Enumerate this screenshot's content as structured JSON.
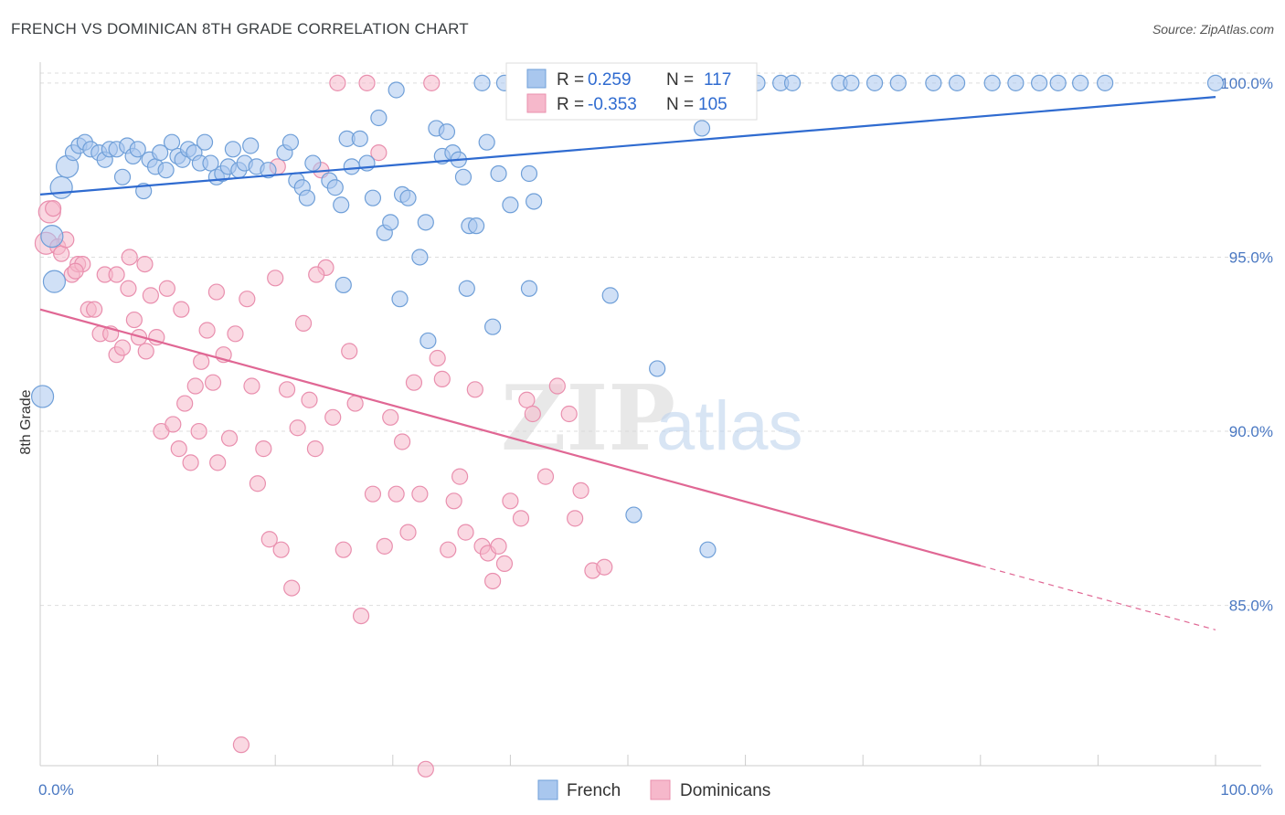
{
  "title": "FRENCH VS DOMINICAN 8TH GRADE CORRELATION CHART",
  "source": "Source: ZipAtlas.com",
  "watermark": {
    "zip": "ZIP",
    "atlas": "atlas"
  },
  "colors": {
    "french_fill": "#a9c7ee",
    "french_stroke": "#6f9fd8",
    "french_line": "#2f6bd0",
    "dominican_fill": "#f6b8cb",
    "dominican_stroke": "#e98fae",
    "dominican_line": "#e06794",
    "tick_text": "#4a78c2",
    "grid": "#dddddd"
  },
  "legend": {
    "french": {
      "r_label": "R =",
      "r_value": " 0.259",
      "n_label": "N =",
      "n_value": "117"
    },
    "dominican": {
      "r_label": "R =",
      "r_value": "-0.353",
      "n_label": "N =",
      "n_value": "105"
    }
  },
  "bottom_legend": [
    "French",
    "Dominicans"
  ],
  "chart_data": {
    "type": "scatter",
    "title": "FRENCH VS DOMINICAN 8TH GRADE CORRELATION CHART",
    "xlabel": "",
    "ylabel": "8th Grade",
    "xlim": [
      0,
      100
    ],
    "ylim": [
      80.4,
      100.6
    ],
    "x_tick_labels": [
      "0.0%",
      "100.0%"
    ],
    "y_ticks": [
      85,
      90,
      95,
      100
    ],
    "y_tick_labels": [
      "85.0%",
      "90.0%",
      "95.0%",
      "100.0%"
    ],
    "grid": "horizontal dashed",
    "legend_position": "top-center",
    "series": [
      {
        "name": "French",
        "r": 0.259,
        "n": 117,
        "trend": {
          "x": [
            0,
            100
          ],
          "y": [
            96.8,
            99.6
          ],
          "dashed_from": null
        },
        "points": [
          [
            1.0,
            95.6
          ],
          [
            1.2,
            94.3
          ],
          [
            1.8,
            97.0
          ],
          [
            2.3,
            97.6
          ],
          [
            2.8,
            98.0
          ],
          [
            3.3,
            98.2
          ],
          [
            3.8,
            98.3
          ],
          [
            4.3,
            98.1
          ],
          [
            5.0,
            98.0
          ],
          [
            5.5,
            97.8
          ],
          [
            5.9,
            98.1
          ],
          [
            6.5,
            98.1
          ],
          [
            7.0,
            97.3
          ],
          [
            7.4,
            98.2
          ],
          [
            7.9,
            97.9
          ],
          [
            8.3,
            98.1
          ],
          [
            8.8,
            96.9
          ],
          [
            9.3,
            97.8
          ],
          [
            9.8,
            97.6
          ],
          [
            10.2,
            98.0
          ],
          [
            10.7,
            97.5
          ],
          [
            11.2,
            98.3
          ],
          [
            11.7,
            97.9
          ],
          [
            12.1,
            97.8
          ],
          [
            12.6,
            98.1
          ],
          [
            13.1,
            98.0
          ],
          [
            13.6,
            97.7
          ],
          [
            14.0,
            98.3
          ],
          [
            14.5,
            97.7
          ],
          [
            15.0,
            97.3
          ],
          [
            15.5,
            97.4
          ],
          [
            16.0,
            97.6
          ],
          [
            16.4,
            98.1
          ],
          [
            16.9,
            97.5
          ],
          [
            17.4,
            97.7
          ],
          [
            17.9,
            98.2
          ],
          [
            18.4,
            97.6
          ],
          [
            19.4,
            97.5
          ],
          [
            20.8,
            98.0
          ],
          [
            21.3,
            98.3
          ],
          [
            21.8,
            97.2
          ],
          [
            22.3,
            97.0
          ],
          [
            22.7,
            96.7
          ],
          [
            23.2,
            97.7
          ],
          [
            24.6,
            97.2
          ],
          [
            25.1,
            97.0
          ],
          [
            25.6,
            96.5
          ],
          [
            26.1,
            98.4
          ],
          [
            26.5,
            97.6
          ],
          [
            27.2,
            98.4
          ],
          [
            27.8,
            97.7
          ],
          [
            28.3,
            96.7
          ],
          [
            28.8,
            99.0
          ],
          [
            29.3,
            95.7
          ],
          [
            29.8,
            96.0
          ],
          [
            30.3,
            99.8
          ],
          [
            30.8,
            96.8
          ],
          [
            31.3,
            96.7
          ],
          [
            32.3,
            95.0
          ],
          [
            32.8,
            96.0
          ],
          [
            33.7,
            98.7
          ],
          [
            34.2,
            97.9
          ],
          [
            34.6,
            98.6
          ],
          [
            35.1,
            98.0
          ],
          [
            35.6,
            97.8
          ],
          [
            36.0,
            97.3
          ],
          [
            36.5,
            95.9
          ],
          [
            37.1,
            95.9
          ],
          [
            37.6,
            100.0
          ],
          [
            38.0,
            98.3
          ],
          [
            38.5,
            93.0
          ],
          [
            39.0,
            97.4
          ],
          [
            39.5,
            100.0
          ],
          [
            40.0,
            96.5
          ],
          [
            40.9,
            100.0
          ],
          [
            41.6,
            97.4
          ],
          [
            42.0,
            96.6
          ],
          [
            42.5,
            100.0
          ],
          [
            43.0,
            100.0
          ],
          [
            44.0,
            100.0
          ],
          [
            45.0,
            100.0
          ],
          [
            46.0,
            100.0
          ],
          [
            47.0,
            100.0
          ],
          [
            48.0,
            100.0
          ],
          [
            48.5,
            93.9
          ],
          [
            49.0,
            100.0
          ],
          [
            50.0,
            100.0
          ],
          [
            50.5,
            87.6
          ],
          [
            51.0,
            100.0
          ],
          [
            52.0,
            100.0
          ],
          [
            52.5,
            91.8
          ],
          [
            53.0,
            100.0
          ],
          [
            55.0,
            100.0
          ],
          [
            56.0,
            100.0
          ],
          [
            56.3,
            98.7
          ],
          [
            56.8,
            86.6
          ],
          [
            58.0,
            100.0
          ],
          [
            60.0,
            100.0
          ],
          [
            61.0,
            100.0
          ],
          [
            63.0,
            100.0
          ],
          [
            64.0,
            100.0
          ],
          [
            68.0,
            100.0
          ],
          [
            69.0,
            100.0
          ],
          [
            71.0,
            100.0
          ],
          [
            73.0,
            100.0
          ],
          [
            76.0,
            100.0
          ],
          [
            78.0,
            100.0
          ],
          [
            81.0,
            100.0
          ],
          [
            83.0,
            100.0
          ],
          [
            85.0,
            100.0
          ],
          [
            86.6,
            100.0
          ],
          [
            88.5,
            100.0
          ],
          [
            90.6,
            100.0
          ],
          [
            100.0,
            100.0
          ],
          [
            0.2,
            91.0
          ],
          [
            25.8,
            94.2
          ],
          [
            30.6,
            93.8
          ],
          [
            36.3,
            94.1
          ],
          [
            41.6,
            94.1
          ],
          [
            33.0,
            92.6
          ]
        ]
      },
      {
        "name": "Dominicans",
        "r": -0.353,
        "n": 105,
        "trend": {
          "x": [
            0,
            100
          ],
          "y": [
            93.5,
            84.3
          ],
          "dashed_from": 80
        },
        "points": [
          [
            0.5,
            95.4
          ],
          [
            0.8,
            96.3
          ],
          [
            1.1,
            96.4
          ],
          [
            1.5,
            95.3
          ],
          [
            1.8,
            95.1
          ],
          [
            2.2,
            95.5
          ],
          [
            2.7,
            94.5
          ],
          [
            3.2,
            94.8
          ],
          [
            3.6,
            94.8
          ],
          [
            4.1,
            93.5
          ],
          [
            4.6,
            93.5
          ],
          [
            5.1,
            92.8
          ],
          [
            5.5,
            94.5
          ],
          [
            6.0,
            92.8
          ],
          [
            6.5,
            92.2
          ],
          [
            7.0,
            92.4
          ],
          [
            7.5,
            94.1
          ],
          [
            8.0,
            93.2
          ],
          [
            8.4,
            92.7
          ],
          [
            8.9,
            94.8
          ],
          [
            9.4,
            93.9
          ],
          [
            9.9,
            92.7
          ],
          [
            10.3,
            90.0
          ],
          [
            10.8,
            94.1
          ],
          [
            11.3,
            90.2
          ],
          [
            11.8,
            89.5
          ],
          [
            12.3,
            90.8
          ],
          [
            12.8,
            89.1
          ],
          [
            13.2,
            91.3
          ],
          [
            13.7,
            92.0
          ],
          [
            14.2,
            92.9
          ],
          [
            14.7,
            91.4
          ],
          [
            15.1,
            89.1
          ],
          [
            15.6,
            92.2
          ],
          [
            16.1,
            89.8
          ],
          [
            16.6,
            92.8
          ],
          [
            17.1,
            81.0
          ],
          [
            17.6,
            93.8
          ],
          [
            18.0,
            91.3
          ],
          [
            18.5,
            88.5
          ],
          [
            19.0,
            89.5
          ],
          [
            19.5,
            86.9
          ],
          [
            20.0,
            94.4
          ],
          [
            20.5,
            86.6
          ],
          [
            21.0,
            91.2
          ],
          [
            21.4,
            85.5
          ],
          [
            21.9,
            90.1
          ],
          [
            22.4,
            93.1
          ],
          [
            22.9,
            90.9
          ],
          [
            23.4,
            89.5
          ],
          [
            23.9,
            97.5
          ],
          [
            24.3,
            94.7
          ],
          [
            24.9,
            90.4
          ],
          [
            25.3,
            100.0
          ],
          [
            25.8,
            86.6
          ],
          [
            26.3,
            92.3
          ],
          [
            26.8,
            90.8
          ],
          [
            27.3,
            84.7
          ],
          [
            27.8,
            100.0
          ],
          [
            28.3,
            88.2
          ],
          [
            28.8,
            98.0
          ],
          [
            29.3,
            86.7
          ],
          [
            29.8,
            90.4
          ],
          [
            30.3,
            88.2
          ],
          [
            30.8,
            89.7
          ],
          [
            31.3,
            87.1
          ],
          [
            31.8,
            91.4
          ],
          [
            32.3,
            88.2
          ],
          [
            32.8,
            80.3
          ],
          [
            33.3,
            100.0
          ],
          [
            33.8,
            92.1
          ],
          [
            34.2,
            91.5
          ],
          [
            34.7,
            86.6
          ],
          [
            35.2,
            88.0
          ],
          [
            35.7,
            88.7
          ],
          [
            36.2,
            87.1
          ],
          [
            37.0,
            91.2
          ],
          [
            37.6,
            86.7
          ],
          [
            38.1,
            86.5
          ],
          [
            38.5,
            85.7
          ],
          [
            39.0,
            86.7
          ],
          [
            39.5,
            86.2
          ],
          [
            40.0,
            88.0
          ],
          [
            40.9,
            87.5
          ],
          [
            41.4,
            90.9
          ],
          [
            41.9,
            90.5
          ],
          [
            42.4,
            100.0
          ],
          [
            43.0,
            88.7
          ],
          [
            44.0,
            91.3
          ],
          [
            45.0,
            90.5
          ],
          [
            45.5,
            87.5
          ],
          [
            46.0,
            88.3
          ],
          [
            47.0,
            86.0
          ],
          [
            48.0,
            86.1
          ],
          [
            57.0,
            100.0
          ],
          [
            20.2,
            97.6
          ],
          [
            13.5,
            90.0
          ],
          [
            7.6,
            95.0
          ],
          [
            3.0,
            94.6
          ],
          [
            6.5,
            94.5
          ],
          [
            12.0,
            93.5
          ],
          [
            23.5,
            94.5
          ],
          [
            15.0,
            94.0
          ],
          [
            9.0,
            92.3
          ]
        ]
      }
    ]
  }
}
